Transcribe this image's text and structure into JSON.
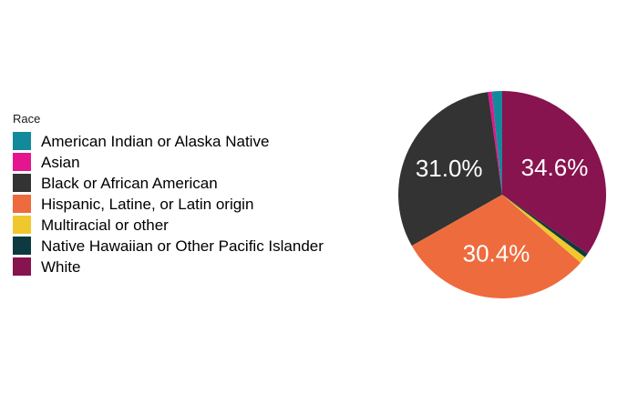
{
  "chart_data": {
    "type": "pie",
    "legend_title": "Race",
    "legend_position": "left",
    "slices": [
      {
        "label": "American Indian or Alaska Native",
        "value": 1.6,
        "color": "#138a9b",
        "display": ""
      },
      {
        "label": "Asian",
        "value": 0.6,
        "color": "#e5158f",
        "display": ""
      },
      {
        "label": "Black or African American",
        "value": 31.0,
        "color": "#333333",
        "display": "31.0%"
      },
      {
        "label": "Hispanic, Latine, or Latin origin",
        "value": 30.4,
        "color": "#ee6b3e",
        "display": "30.4%"
      },
      {
        "label": "Multiracial or other",
        "value": 1.1,
        "color": "#f0c82e",
        "display": ""
      },
      {
        "label": "Native Hawaiian or Other Pacific Islander",
        "value": 0.7,
        "color": "#0d3a40",
        "display": ""
      },
      {
        "label": "White",
        "value": 34.6,
        "color": "#87134f",
        "display": "34.6%"
      }
    ]
  }
}
